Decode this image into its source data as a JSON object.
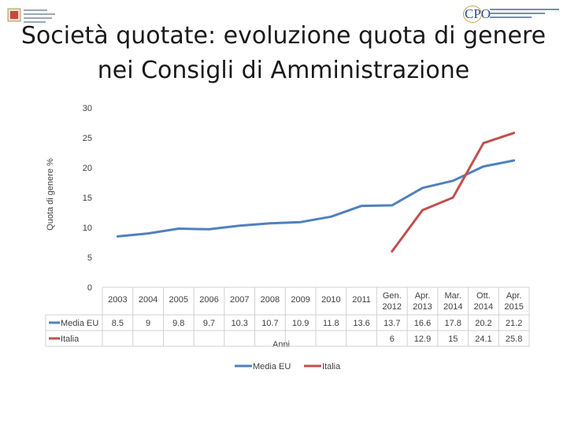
{
  "title": "Società quotate: evoluzione quota di genere nei Consigli di Amministrazione",
  "icons": {
    "logo_left": "institution-logo-icon",
    "logo_right": "cpo-logo-icon"
  },
  "cpo_logo_text": "CPO",
  "chart_data": {
    "type": "line",
    "ylabel": "Quota di genere %",
    "xlabel": "Anni",
    "ylim": [
      0,
      30
    ],
    "yticks": [
      0,
      5,
      10,
      15,
      20,
      25,
      30
    ],
    "grid": false,
    "legend_position": "bottom",
    "categories": [
      "2003",
      "2004",
      "2005",
      "2006",
      "2007",
      "2008",
      "2009",
      "2010",
      "2011",
      "Gen. 2012",
      "Apr. 2013",
      "Mar. 2014",
      "Ott. 2014",
      "Apr. 2015"
    ],
    "series": [
      {
        "name": "Media EU",
        "color": "#4f81bd",
        "values": [
          8.5,
          9,
          9.8,
          9.7,
          10.3,
          10.7,
          10.9,
          11.8,
          13.6,
          13.7,
          16.6,
          17.8,
          20.2,
          21.2
        ]
      },
      {
        "name": "Italia",
        "color": "#c0504d",
        "values": [
          null,
          null,
          null,
          null,
          null,
          null,
          null,
          null,
          null,
          6,
          12.9,
          15,
          24.1,
          25.8
        ]
      }
    ],
    "data_table": true
  }
}
